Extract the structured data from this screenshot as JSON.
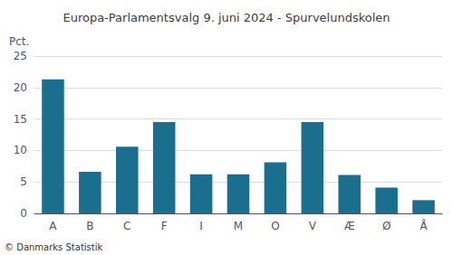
{
  "chart_data": {
    "type": "bar",
    "title": "Europa-Parlamentsvalg 9. juni 2024 - Spurvelundskolen",
    "ylabel": "Pct.",
    "categories": [
      "A",
      "B",
      "C",
      "F",
      "I",
      "M",
      "O",
      "V",
      "Æ",
      "Ø",
      "Å"
    ],
    "values": [
      21.3,
      6.6,
      10.6,
      14.5,
      6.2,
      6.2,
      8.1,
      14.5,
      6.1,
      4.1,
      2.1
    ],
    "color": "#1a6e8e",
    "ylim": [
      0,
      25
    ],
    "yticks": [
      0,
      5,
      10,
      15,
      20,
      25
    ],
    "grid": true,
    "annotations": [
      "© Danmarks Statistik"
    ]
  }
}
